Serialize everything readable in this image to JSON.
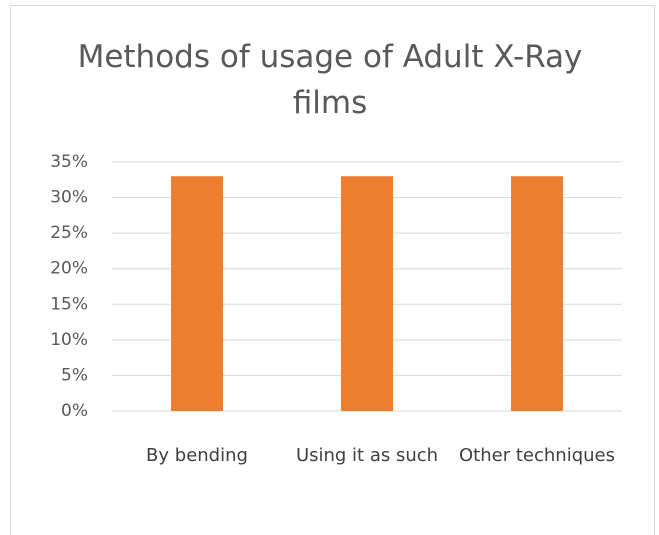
{
  "chart_data": {
    "type": "bar",
    "title": "Methods of usage of Adult X-Ray films",
    "categories": [
      "By bending",
      "Using it as such",
      "Other techniques"
    ],
    "values": [
      33,
      33,
      33
    ],
    "color": "#ed7d31",
    "ylim": [
      0,
      35
    ],
    "yticks": [
      {
        "value": 0,
        "label": "0%"
      },
      {
        "value": 5,
        "label": "5%"
      },
      {
        "value": 10,
        "label": "10%"
      },
      {
        "value": 15,
        "label": "15%"
      },
      {
        "value": 20,
        "label": "20%"
      },
      {
        "value": 25,
        "label": "25%"
      },
      {
        "value": 30,
        "label": "30%"
      },
      {
        "value": 35,
        "label": "35%"
      }
    ],
    "grid": true
  }
}
